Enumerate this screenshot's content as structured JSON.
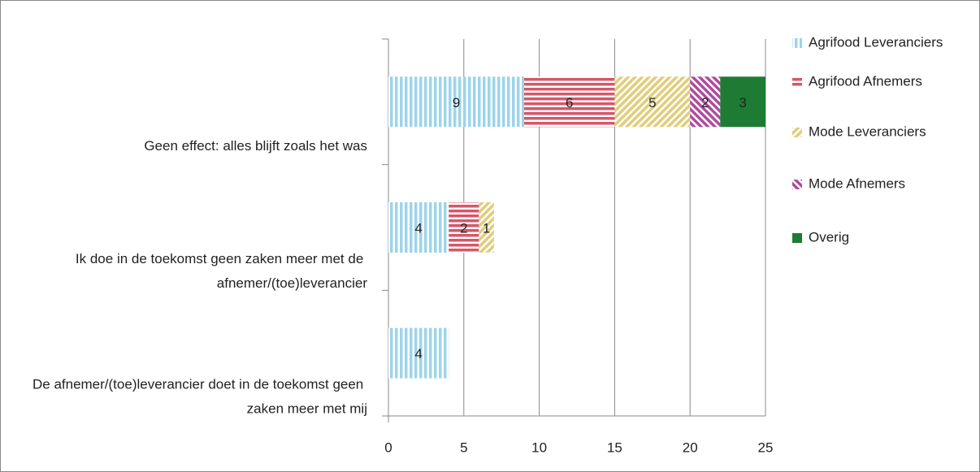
{
  "chart_data": {
    "type": "bar",
    "orientation": "horizontal",
    "stacked": true,
    "categories": [
      "Geen effect: alles blijft zoals het was",
      "Ik doe in de toekomst geen zaken meer met de afnemer/(toe)leverancier",
      "De afnemer/(toe)leverancier doet in de toekomst geen zaken meer met mij"
    ],
    "series": [
      {
        "name": "Agrifood Leveranciers",
        "color": "#9dd4ea",
        "pattern": "vertical",
        "values": [
          9,
          4,
          4
        ]
      },
      {
        "name": "Agrifood Afnemers",
        "color": "#d6576a",
        "pattern": "horizontal",
        "values": [
          6,
          2,
          null
        ]
      },
      {
        "name": "Mode Leveranciers",
        "color": "#e0cd7a",
        "pattern": "diagonal",
        "values": [
          5,
          1,
          null
        ]
      },
      {
        "name": "Mode Afnemers",
        "color": "#b04aa0",
        "pattern": "antidiagonal",
        "values": [
          2,
          null,
          null
        ]
      },
      {
        "name": "Overig",
        "color": "#1e7b34",
        "pattern": "solid",
        "values": [
          3,
          null,
          null
        ]
      }
    ],
    "xlim": [
      0,
      25
    ],
    "xticks": [
      0,
      5,
      10,
      15,
      20,
      25
    ],
    "grid": true,
    "legend": "right"
  }
}
